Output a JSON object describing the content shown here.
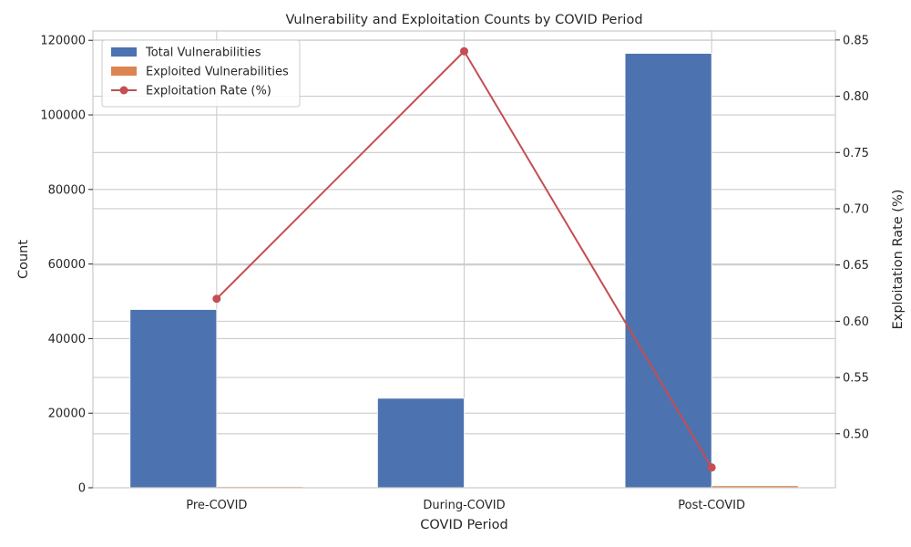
{
  "chart_data": {
    "type": "bar",
    "title": "Vulnerability and Exploitation Counts by COVID Period",
    "xlabel": "COVID Period",
    "ylabel": "Count",
    "y2label": "Exploitation Rate (%)",
    "categories": [
      "Pre-COVID",
      "During-COVID",
      "Post-COVID"
    ],
    "ylim": [
      0,
      122500
    ],
    "y2lim": [
      0.452,
      0.858
    ],
    "yticks": [
      0,
      20000,
      40000,
      60000,
      80000,
      100000,
      120000
    ],
    "y2ticks": [
      0.5,
      0.55,
      0.6,
      0.65,
      0.7,
      0.75,
      0.8,
      0.85
    ],
    "y2tick_labels": [
      "0.50",
      "0.55",
      "0.60",
      "0.65",
      "0.70",
      "0.75",
      "0.80",
      "0.85"
    ],
    "grid": true,
    "legend_position": "top-left",
    "series": [
      {
        "name": "Total Vulnerabilities",
        "kind": "bar",
        "axis": "left",
        "color": "#4c72b0",
        "values": [
          47800,
          24000,
          116500
        ]
      },
      {
        "name": "Exploited Vulnerabilities",
        "kind": "bar",
        "axis": "left",
        "color": "#dd8452",
        "values": [
          296,
          201,
          548
        ]
      },
      {
        "name": "Exploitation Rate (%)",
        "kind": "line",
        "axis": "right",
        "color": "#c44e52",
        "marker": "circle",
        "values": [
          0.62,
          0.84,
          0.47
        ]
      }
    ]
  }
}
